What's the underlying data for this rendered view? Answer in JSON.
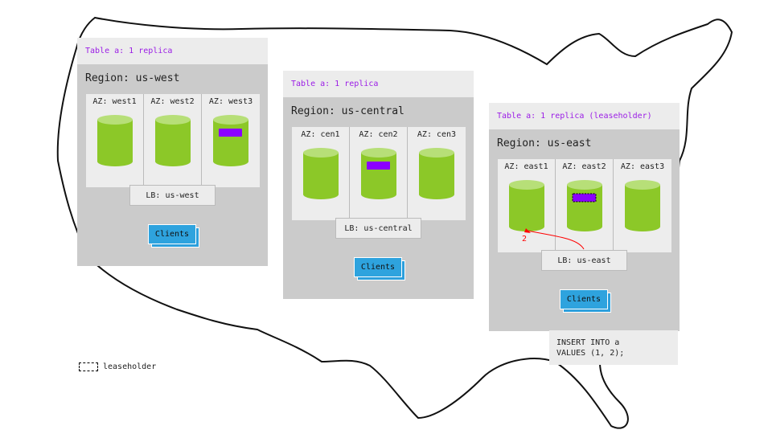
{
  "colors": {
    "replica": "#8cc828",
    "replica_top": "#b7df78",
    "range": "#8b00ff",
    "label": "#9b1de6",
    "clients": "#2ea3de",
    "arrow": "#ff0000"
  },
  "regions": [
    {
      "header": "Table a: 1 replica",
      "title": "Region: us-west",
      "azs": [
        "AZ: west1",
        "AZ: west2",
        "AZ: west3"
      ],
      "range_in": 2,
      "leaseholder": false,
      "lb": "LB: us-west",
      "clients": "Clients"
    },
    {
      "header": "Table a: 1 replica",
      "title": "Region: us-central",
      "azs": [
        "AZ: cen1",
        "AZ: cen2",
        "AZ: cen3"
      ],
      "range_in": 1,
      "leaseholder": false,
      "lb": "LB: us-central",
      "clients": "Clients"
    },
    {
      "header": "Table a: 1 replica (leaseholder)",
      "title": "Region: us-east",
      "azs": [
        "AZ: east1",
        "AZ: east2",
        "AZ: east3"
      ],
      "range_in": 1,
      "leaseholder": true,
      "lb": "LB: us-east",
      "clients": "Clients"
    }
  ],
  "arrow_label": "2",
  "query": "INSERT INTO a\nVALUES (1, 2);",
  "legend": {
    "label": "leaseholder"
  }
}
